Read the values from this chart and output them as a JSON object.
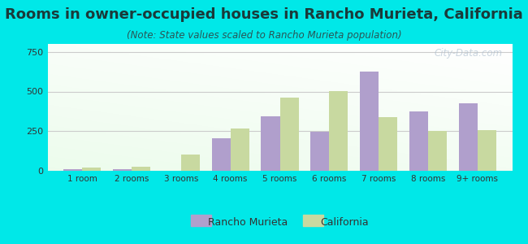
{
  "title": "Rooms in owner-occupied houses in Rancho Murieta, California",
  "subtitle": "(Note: State values scaled to Rancho Murieta population)",
  "categories": [
    "1 room",
    "2 rooms",
    "3 rooms",
    "4 rooms",
    "5 rooms",
    "6 rooms",
    "7 rooms",
    "8 rooms",
    "9+ rooms"
  ],
  "rancho_murieta": [
    8,
    10,
    0,
    205,
    345,
    245,
    625,
    375,
    425
  ],
  "california": [
    22,
    28,
    105,
    265,
    460,
    505,
    340,
    250,
    255
  ],
  "rancho_color": "#b09fcc",
  "california_color": "#c8d9a0",
  "bg_color": "#00e8e8",
  "title_color": "#1a3a3a",
  "subtitle_color": "#2a5555",
  "title_fontsize": 13,
  "subtitle_fontsize": 8.5,
  "ylim": [
    0,
    800
  ],
  "yticks": [
    0,
    250,
    500,
    750
  ],
  "bar_width": 0.38,
  "watermark": "City-Data.com"
}
